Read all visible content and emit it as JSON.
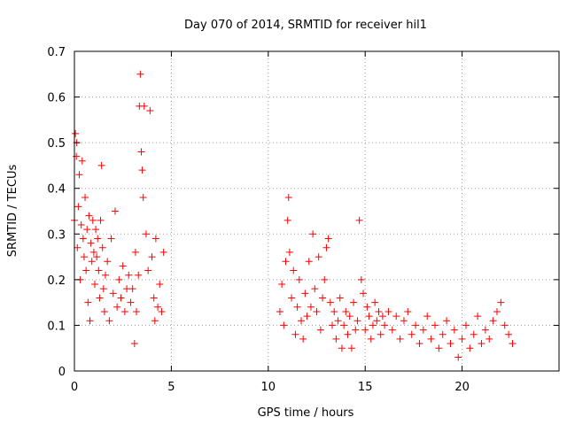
{
  "chart_data": {
    "type": "scatter",
    "title": "Day 070 of 2014, SRMTID for receiver hil1",
    "xlabel": "GPS time / hours",
    "ylabel": "SRMTID / TECUs",
    "xlim": [
      0,
      25
    ],
    "ylim": [
      0,
      0.7
    ],
    "xticks": [
      0,
      5,
      10,
      15,
      20
    ],
    "xtick_labels": [
      "0",
      "5",
      "10",
      "15",
      "20"
    ],
    "yticks": [
      0,
      0.1,
      0.2,
      0.3,
      0.4,
      0.5,
      0.6,
      0.7
    ],
    "ytick_labels": [
      "0",
      "0.1",
      "0.2",
      "0.3",
      "0.4",
      "0.5",
      "0.6",
      "0.7"
    ],
    "grid": true,
    "marker": "plus",
    "color": "#ff0000",
    "legend": "none",
    "series": [
      {
        "name": "hil1",
        "points": [
          [
            0.0,
            0.33
          ],
          [
            0.05,
            0.52
          ],
          [
            0.1,
            0.47
          ],
          [
            0.12,
            0.5
          ],
          [
            0.15,
            0.27
          ],
          [
            0.2,
            0.36
          ],
          [
            0.25,
            0.43
          ],
          [
            0.3,
            0.2
          ],
          [
            0.35,
            0.32
          ],
          [
            0.4,
            0.46
          ],
          [
            0.45,
            0.29
          ],
          [
            0.5,
            0.25
          ],
          [
            0.55,
            0.38
          ],
          [
            0.6,
            0.22
          ],
          [
            0.65,
            0.31
          ],
          [
            0.7,
            0.15
          ],
          [
            0.75,
            0.34
          ],
          [
            0.8,
            0.11
          ],
          [
            0.85,
            0.28
          ],
          [
            0.9,
            0.24
          ],
          [
            0.95,
            0.33
          ],
          [
            1.0,
            0.26
          ],
          [
            1.05,
            0.19
          ],
          [
            1.1,
            0.31
          ],
          [
            1.15,
            0.25
          ],
          [
            1.2,
            0.29
          ],
          [
            1.25,
            0.22
          ],
          [
            1.3,
            0.16
          ],
          [
            1.35,
            0.33
          ],
          [
            1.4,
            0.45
          ],
          [
            1.45,
            0.27
          ],
          [
            1.5,
            0.18
          ],
          [
            1.55,
            0.13
          ],
          [
            1.6,
            0.21
          ],
          [
            1.7,
            0.24
          ],
          [
            1.8,
            0.11
          ],
          [
            1.9,
            0.29
          ],
          [
            2.0,
            0.17
          ],
          [
            2.1,
            0.35
          ],
          [
            2.2,
            0.14
          ],
          [
            2.3,
            0.2
          ],
          [
            2.4,
            0.16
          ],
          [
            2.5,
            0.23
          ],
          [
            2.6,
            0.13
          ],
          [
            2.7,
            0.18
          ],
          [
            2.8,
            0.21
          ],
          [
            2.9,
            0.15
          ],
          [
            3.0,
            0.18
          ],
          [
            3.1,
            0.06
          ],
          [
            3.15,
            0.26
          ],
          [
            3.2,
            0.13
          ],
          [
            3.3,
            0.21
          ],
          [
            3.35,
            0.58
          ],
          [
            3.4,
            0.65
          ],
          [
            3.45,
            0.48
          ],
          [
            3.5,
            0.44
          ],
          [
            3.55,
            0.38
          ],
          [
            3.6,
            0.58
          ],
          [
            3.7,
            0.3
          ],
          [
            3.8,
            0.22
          ],
          [
            3.9,
            0.57
          ],
          [
            4.0,
            0.25
          ],
          [
            4.1,
            0.16
          ],
          [
            4.15,
            0.11
          ],
          [
            4.2,
            0.29
          ],
          [
            4.3,
            0.14
          ],
          [
            4.4,
            0.19
          ],
          [
            4.5,
            0.13
          ],
          [
            4.6,
            0.26
          ],
          [
            10.6,
            0.13
          ],
          [
            10.7,
            0.19
          ],
          [
            10.8,
            0.1
          ],
          [
            10.9,
            0.24
          ],
          [
            11.0,
            0.33
          ],
          [
            11.05,
            0.38
          ],
          [
            11.1,
            0.26
          ],
          [
            11.2,
            0.16
          ],
          [
            11.3,
            0.22
          ],
          [
            11.4,
            0.08
          ],
          [
            11.5,
            0.14
          ],
          [
            11.6,
            0.2
          ],
          [
            11.7,
            0.11
          ],
          [
            11.8,
            0.07
          ],
          [
            11.9,
            0.17
          ],
          [
            12.0,
            0.12
          ],
          [
            12.1,
            0.24
          ],
          [
            12.2,
            0.14
          ],
          [
            12.3,
            0.3
          ],
          [
            12.4,
            0.18
          ],
          [
            12.5,
            0.13
          ],
          [
            12.6,
            0.25
          ],
          [
            12.7,
            0.09
          ],
          [
            12.8,
            0.16
          ],
          [
            12.9,
            0.2
          ],
          [
            13.0,
            0.27
          ],
          [
            13.1,
            0.29
          ],
          [
            13.2,
            0.15
          ],
          [
            13.3,
            0.1
          ],
          [
            13.4,
            0.13
          ],
          [
            13.5,
            0.07
          ],
          [
            13.6,
            0.11
          ],
          [
            13.7,
            0.16
          ],
          [
            13.8,
            0.05
          ],
          [
            13.9,
            0.1
          ],
          [
            14.0,
            0.13
          ],
          [
            14.1,
            0.08
          ],
          [
            14.2,
            0.12
          ],
          [
            14.3,
            0.05
          ],
          [
            14.4,
            0.15
          ],
          [
            14.5,
            0.09
          ],
          [
            14.6,
            0.11
          ],
          [
            14.7,
            0.33
          ],
          [
            14.8,
            0.2
          ],
          [
            14.9,
            0.17
          ],
          [
            15.0,
            0.09
          ],
          [
            15.1,
            0.14
          ],
          [
            15.2,
            0.12
          ],
          [
            15.3,
            0.07
          ],
          [
            15.4,
            0.1
          ],
          [
            15.5,
            0.15
          ],
          [
            15.6,
            0.11
          ],
          [
            15.7,
            0.13
          ],
          [
            15.8,
            0.08
          ],
          [
            15.9,
            0.12
          ],
          [
            16.0,
            0.1
          ],
          [
            16.2,
            0.13
          ],
          [
            16.4,
            0.09
          ],
          [
            16.6,
            0.12
          ],
          [
            16.8,
            0.07
          ],
          [
            17.0,
            0.11
          ],
          [
            17.2,
            0.13
          ],
          [
            17.4,
            0.08
          ],
          [
            17.6,
            0.1
          ],
          [
            17.8,
            0.06
          ],
          [
            18.0,
            0.09
          ],
          [
            18.2,
            0.12
          ],
          [
            18.4,
            0.07
          ],
          [
            18.6,
            0.1
          ],
          [
            18.8,
            0.05
          ],
          [
            19.0,
            0.08
          ],
          [
            19.2,
            0.11
          ],
          [
            19.4,
            0.06
          ],
          [
            19.6,
            0.09
          ],
          [
            19.8,
            0.03
          ],
          [
            20.0,
            0.07
          ],
          [
            20.2,
            0.1
          ],
          [
            20.4,
            0.05
          ],
          [
            20.6,
            0.08
          ],
          [
            20.8,
            0.12
          ],
          [
            21.0,
            0.06
          ],
          [
            21.2,
            0.09
          ],
          [
            21.4,
            0.07
          ],
          [
            21.6,
            0.11
          ],
          [
            21.8,
            0.13
          ],
          [
            22.0,
            0.15
          ],
          [
            22.2,
            0.1
          ],
          [
            22.4,
            0.08
          ],
          [
            22.6,
            0.06
          ]
        ]
      }
    ]
  }
}
